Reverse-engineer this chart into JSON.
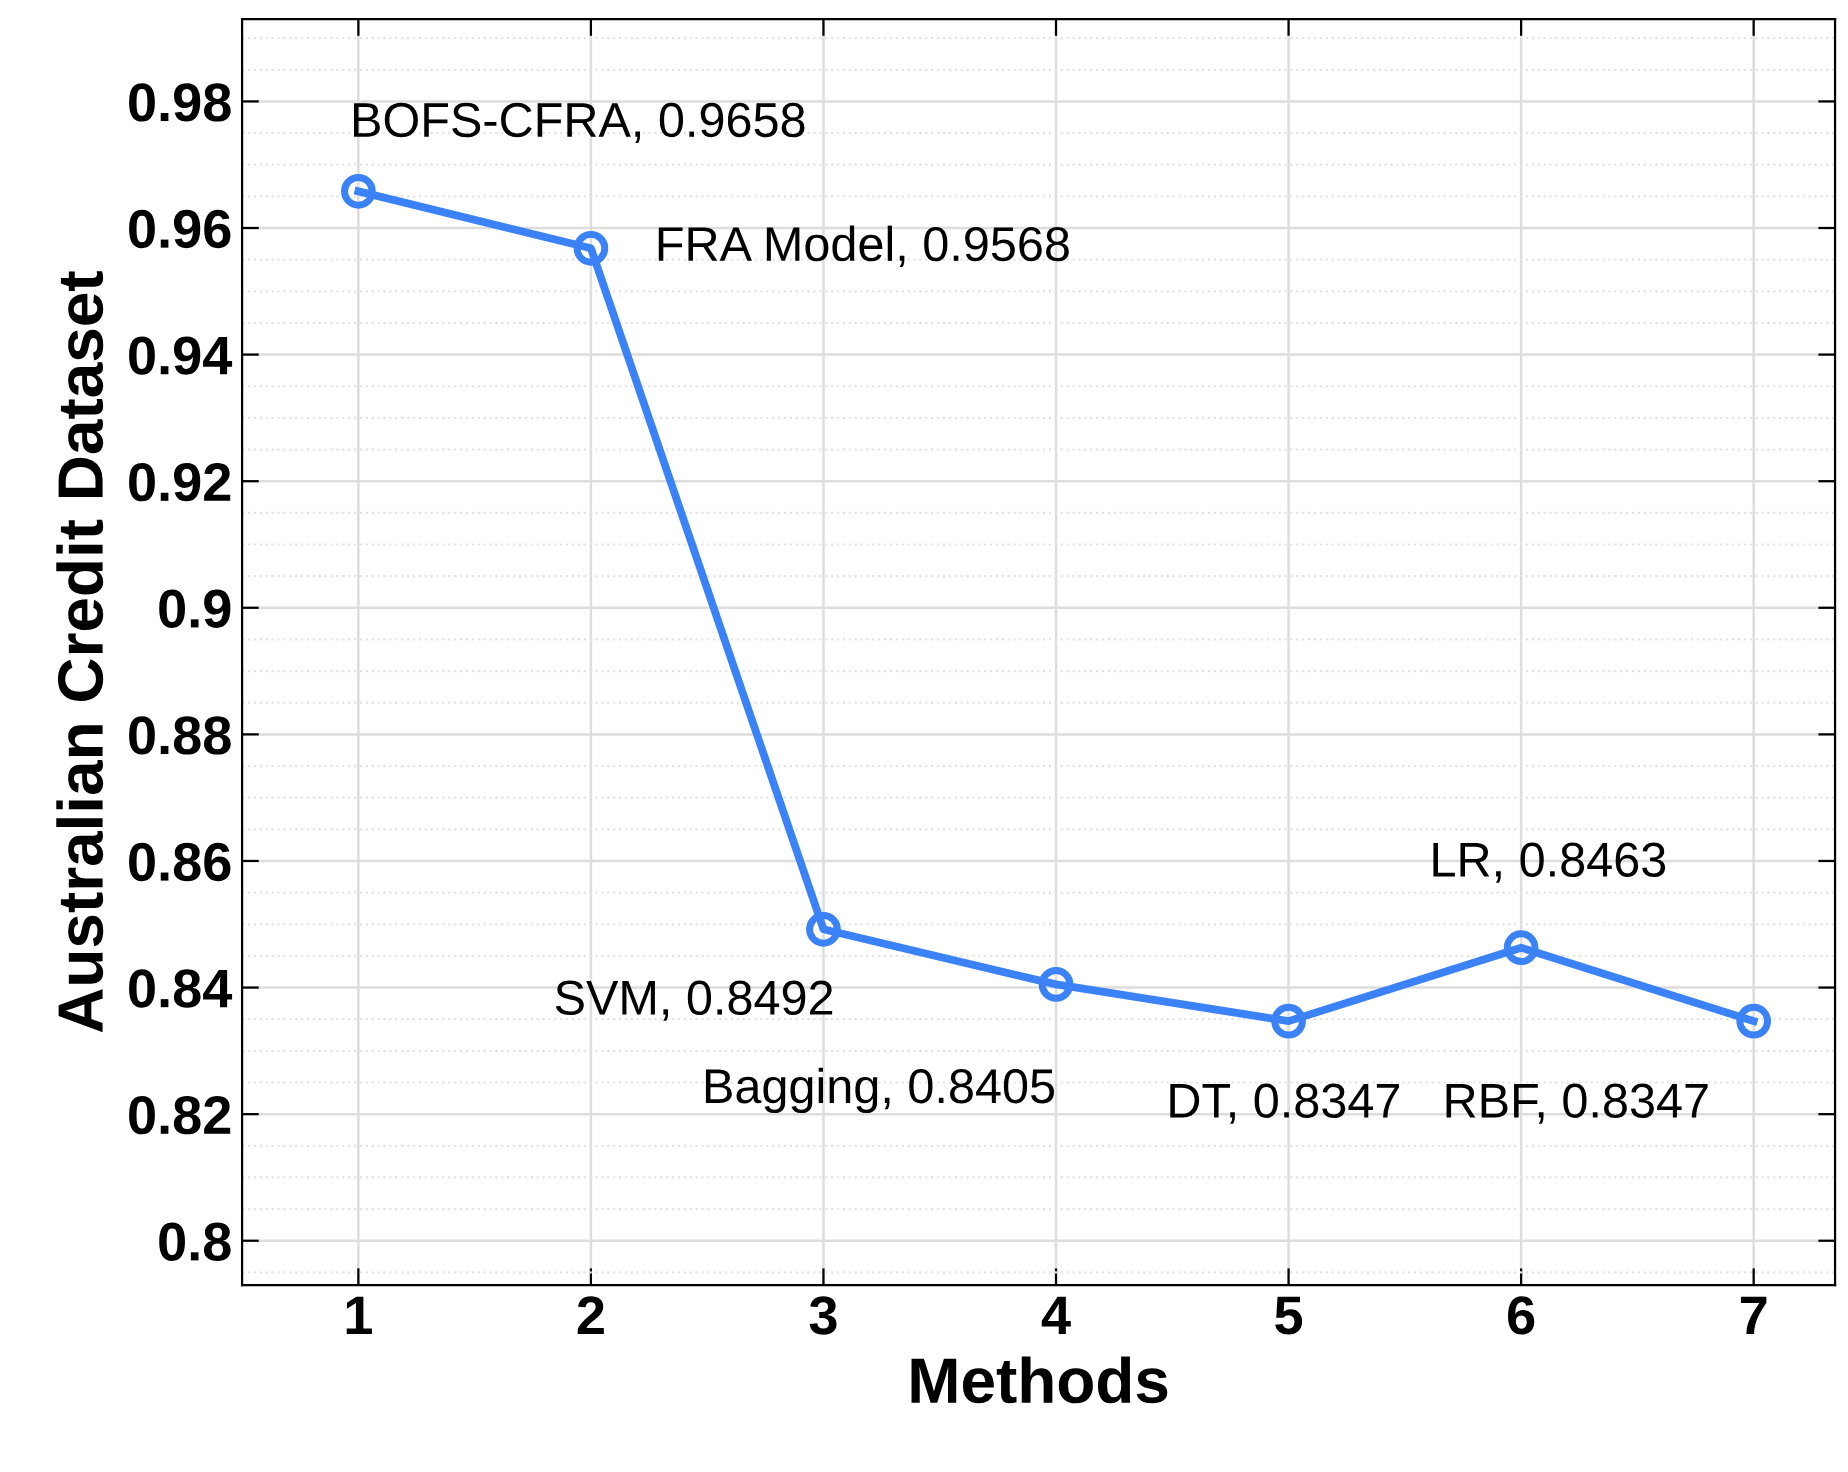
{
  "chart_data": {
    "type": "line",
    "xlabel": "Methods",
    "ylabel": "Australian Credit Dataset",
    "x": [
      1,
      2,
      3,
      4,
      5,
      6,
      7
    ],
    "series": [
      {
        "color": "#3b82f6",
        "values": [
          0.9658,
          0.9568,
          0.8492,
          0.8405,
          0.8347,
          0.8463,
          0.8347
        ]
      }
    ],
    "xlim": [
      0.5,
      7.35
    ],
    "xticks": [
      1,
      2,
      3,
      4,
      5,
      6,
      7
    ],
    "ylim": [
      0.793,
      0.993
    ],
    "yticks": [
      0.8,
      0.82,
      0.84,
      0.86,
      0.88,
      0.9,
      0.92,
      0.94,
      0.96,
      0.98
    ],
    "grid": true,
    "marker": "circle",
    "line_style": "solid",
    "annotations": [
      {
        "text": "BOFS-CFRA, 0.9658",
        "x": 1,
        "y": 0.9658
      },
      {
        "text": "FRA Model, 0.9568",
        "x": 2,
        "y": 0.9568
      },
      {
        "text": "SVM, 0.8492",
        "x": 3,
        "y": 0.8492
      },
      {
        "text": "Bagging, 0.8405",
        "x": 4,
        "y": 0.8405
      },
      {
        "text": "DT, 0.8347",
        "x": 5,
        "y": 0.8347
      },
      {
        "text": "LR, 0.8463",
        "x": 6,
        "y": 0.8463
      },
      {
        "text": "RBF, 0.8347",
        "x": 7,
        "y": 0.8347
      }
    ]
  }
}
